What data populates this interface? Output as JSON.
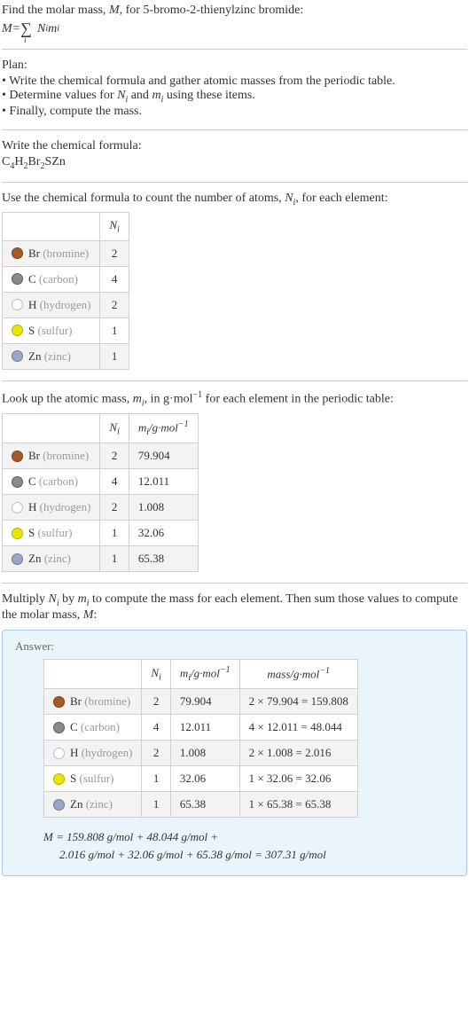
{
  "intro": {
    "line1_prefix": "Find the molar mass, ",
    "line1_mid": ", for 5-bromo-2-thienylzinc bromide:",
    "var_M": "M",
    "eq_lhs": "M",
    "eq_eq": " = ",
    "eq_sigma_sub": "i",
    "eq_term_N": "N",
    "eq_term_Nsub": "i",
    "eq_term_m": "m",
    "eq_term_msub": "i"
  },
  "plan": {
    "title": "Plan:",
    "items": [
      "Write the chemical formula and gather atomic masses from the periodic table.",
      "Determine values for N_i and m_i using these items.",
      "Finally, compute the mass."
    ],
    "item1": "Write the chemical formula and gather atomic masses from the periodic table.",
    "item2_pre": "Determine values for ",
    "item2_N": "N",
    "item2_Ni": "i",
    "item2_and": " and ",
    "item2_m": "m",
    "item2_mi": "i",
    "item2_post": " using these items.",
    "item3": "Finally, compute the mass."
  },
  "writeformula": {
    "title": "Write the chemical formula:",
    "formula_parts": {
      "C": "C",
      "Csub": "4",
      "H": "H",
      "Hsub": "2",
      "Br": "Br",
      "Brsub": "2",
      "S": "S",
      "Zn": "Zn"
    }
  },
  "count": {
    "text_pre": "Use the chemical formula to count the number of atoms, ",
    "Nvar": "N",
    "Nsub": "i",
    "text_post": ", for each element:",
    "header_Ni": "N",
    "header_Ni_sub": "i"
  },
  "lookup": {
    "text_pre": "Look up the atomic mass, ",
    "mvar": "m",
    "msub": "i",
    "text_mid": ", in g·mol",
    "exp": "−1",
    "text_post": " for each element in the periodic table:",
    "header_mi": "m",
    "header_mi_sub": "i",
    "header_unit_pre": "/g·mol",
    "header_unit_exp": "−1"
  },
  "multiply": {
    "text_pre": "Multiply ",
    "N": "N",
    "Ni": "i",
    "by": " by ",
    "m": "m",
    "mi": "i",
    "text_mid": " to compute the mass for each element. Then sum those values to compute the molar mass, ",
    "Mvar": "M",
    "colon": ":"
  },
  "answer": {
    "label": "Answer:",
    "header_mass_pre": "mass/g·mol",
    "header_mass_exp": "−1",
    "final_line1_pre": "M",
    "final_line1_eq": " = 159.808 g/mol + 48.044 g/mol +",
    "final_line2": "2.016 g/mol + 32.06 g/mol + 65.38 g/mol = 307.31 g/mol"
  },
  "elements": [
    {
      "symbol": "Br",
      "name": "(bromine)",
      "swatch_fill": "#a55a2a",
      "swatch_border": "#7a3e1a",
      "Ni": "2",
      "mi": "79.904",
      "mass": "2 × 79.904 = 159.808"
    },
    {
      "symbol": "C",
      "name": "(carbon)",
      "swatch_fill": "#8a8a8a",
      "swatch_border": "#5a5a5a",
      "Ni": "4",
      "mi": "12.011",
      "mass": "4 × 12.011 = 48.044"
    },
    {
      "symbol": "H",
      "name": "(hydrogen)",
      "swatch_fill": "#ffffff",
      "swatch_border": "#bdbdbd",
      "Ni": "2",
      "mi": "1.008",
      "mass": "2 × 1.008 = 2.016"
    },
    {
      "symbol": "S",
      "name": "(sulfur)",
      "swatch_fill": "#e6e600",
      "swatch_border": "#b3b300",
      "Ni": "1",
      "mi": "32.06",
      "mass": "1 × 32.06 = 32.06"
    },
    {
      "symbol": "Zn",
      "name": "(zinc)",
      "swatch_fill": "#9aa6c4",
      "swatch_border": "#6b7aa3",
      "Ni": "1",
      "mi": "65.38",
      "mass": "1 × 65.38 = 65.38"
    }
  ]
}
